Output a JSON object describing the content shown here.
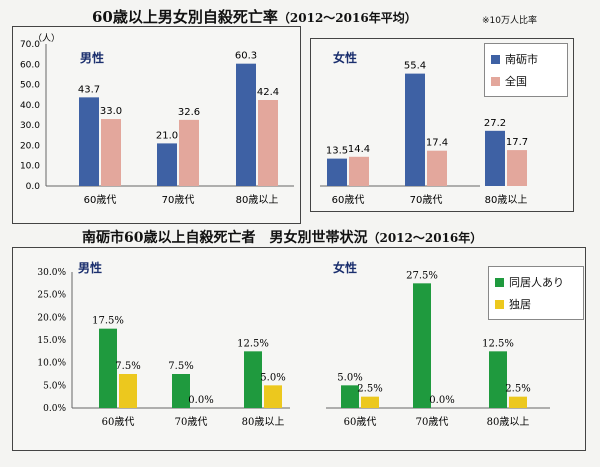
{
  "title1": {
    "main": "60歳以上男女別自殺死亡率",
    "period": "（2012～2016年平均）",
    "note": "※10万人比率"
  },
  "title2": {
    "main": "南砺市60歳以上自殺死亡者　男女別世帯状況",
    "period": "（2012～2016年）"
  },
  "chart_data": [
    {
      "type": "bar",
      "title": "男性",
      "ylabel": "（人）",
      "ylim": [
        0,
        70
      ],
      "yticks": [
        "0.0",
        "10.0",
        "20.0",
        "30.0",
        "40.0",
        "50.0",
        "60.0",
        "70.0"
      ],
      "categories": [
        "60歳代",
        "70歳代",
        "80歳以上"
      ],
      "series": [
        {
          "name": "南砺市",
          "values": [
            43.7,
            21.0,
            60.3
          ],
          "labels": [
            "43.7",
            "21.0",
            "60.3"
          ],
          "color": "#3e61a4"
        },
        {
          "name": "全国",
          "values": [
            33.0,
            32.6,
            42.4
          ],
          "labels": [
            "33.0",
            "32.6",
            "42.4"
          ],
          "color": "#e3a79c"
        }
      ]
    },
    {
      "type": "bar",
      "title": "女性",
      "ylim": [
        0,
        70
      ],
      "categories": [
        "60歳代",
        "70歳代",
        "80歳以上"
      ],
      "series": [
        {
          "name": "南砺市",
          "values": [
            13.5,
            55.4,
            27.2
          ],
          "labels": [
            "13.5",
            "55.4",
            "27.2"
          ],
          "color": "#3e61a4"
        },
        {
          "name": "全国",
          "values": [
            14.4,
            17.4,
            17.7
          ],
          "labels": [
            "14.4",
            "17.4",
            "17.7"
          ],
          "color": "#e3a79c"
        }
      ],
      "legend": "top-right"
    },
    {
      "type": "bar",
      "title": "男性",
      "ylim": [
        0,
        30
      ],
      "yticks": [
        "0.0%",
        "5.0%",
        "10.0%",
        "15.0%",
        "20.0%",
        "25.0%",
        "30.0%"
      ],
      "categories": [
        "60歳代",
        "70歳代",
        "80歳以上"
      ],
      "series": [
        {
          "name": "同居人あり",
          "values": [
            17.5,
            7.5,
            12.5
          ],
          "labels": [
            "17.5%",
            "7.5%",
            "12.5%"
          ],
          "color": "#1f9a3e"
        },
        {
          "name": "独居",
          "values": [
            7.5,
            0.0,
            5.0
          ],
          "labels": [
            "7.5%",
            "0.0%",
            "5.0%"
          ],
          "color": "#ecc81e"
        }
      ]
    },
    {
      "type": "bar",
      "title": "女性",
      "ylim": [
        0,
        30
      ],
      "categories": [
        "60歳代",
        "70歳代",
        "80歳以上"
      ],
      "series": [
        {
          "name": "同居人あり",
          "values": [
            5.0,
            27.5,
            12.5
          ],
          "labels": [
            "5.0%",
            "27.5%",
            "12.5%"
          ],
          "color": "#1f9a3e"
        },
        {
          "name": "独居",
          "values": [
            2.5,
            0.0,
            2.5
          ],
          "labels": [
            "2.5%",
            "0.0%",
            "2.5%"
          ],
          "color": "#ecc81e"
        }
      ],
      "legend": "top-right"
    }
  ]
}
